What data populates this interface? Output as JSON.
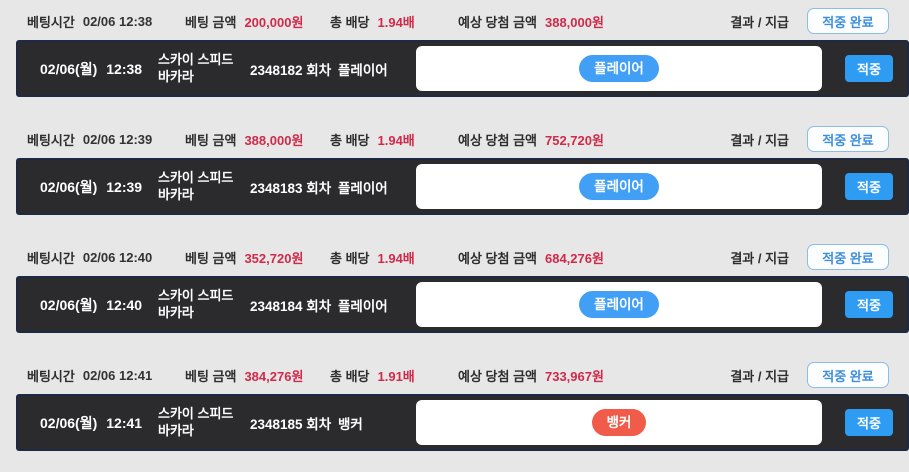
{
  "labels": {
    "bet_time": "베팅시간",
    "bet_amount": "베팅 금액",
    "total_odds": "총 배당",
    "expected_win": "예상 당첨 금액",
    "result_payment": "결과 / 지급"
  },
  "colors": {
    "accent_blue": "#2f9cf4",
    "value_red": "#d02a4a",
    "player_pill": "#41a0f5",
    "banker_pill": "#f15b4a",
    "dark_row_bg": "#2b2b2e"
  },
  "records": [
    {
      "bet_time": "02/06 12:38",
      "bet_amount": "200,000원",
      "total_odds": "1.94배",
      "expected_win": "388,000원",
      "result_button": "적중 완료",
      "row": {
        "date": "02/06(월)",
        "time": "12:38",
        "game_line1": "스카이 스피드",
        "game_line2": "바카라",
        "round": "2348182 회차",
        "pick": "플레이어",
        "badge": "플레이어",
        "badge_color": "#41a0f5",
        "hit_button": "적중"
      }
    },
    {
      "bet_time": "02/06 12:39",
      "bet_amount": "388,000원",
      "total_odds": "1.94배",
      "expected_win": "752,720원",
      "result_button": "적중 완료",
      "row": {
        "date": "02/06(월)",
        "time": "12:39",
        "game_line1": "스카이 스피드",
        "game_line2": "바카라",
        "round": "2348183 회차",
        "pick": "플레이어",
        "badge": "플레이어",
        "badge_color": "#41a0f5",
        "hit_button": "적중"
      }
    },
    {
      "bet_time": "02/06 12:40",
      "bet_amount": "352,720원",
      "total_odds": "1.94배",
      "expected_win": "684,276원",
      "result_button": "적중 완료",
      "row": {
        "date": "02/06(월)",
        "time": "12:40",
        "game_line1": "스카이 스피드",
        "game_line2": "바카라",
        "round": "2348184 회차",
        "pick": "플레이어",
        "badge": "플레이어",
        "badge_color": "#41a0f5",
        "hit_button": "적중"
      }
    },
    {
      "bet_time": "02/06 12:41",
      "bet_amount": "384,276원",
      "total_odds": "1.91배",
      "expected_win": "733,967원",
      "result_button": "적중 완료",
      "row": {
        "date": "02/06(월)",
        "time": "12:41",
        "game_line1": "스카이 스피드",
        "game_line2": "바카라",
        "round": "2348185 회차",
        "pick": "뱅커",
        "badge": "뱅커",
        "badge_color": "#f15b4a",
        "hit_button": "적중"
      }
    }
  ]
}
